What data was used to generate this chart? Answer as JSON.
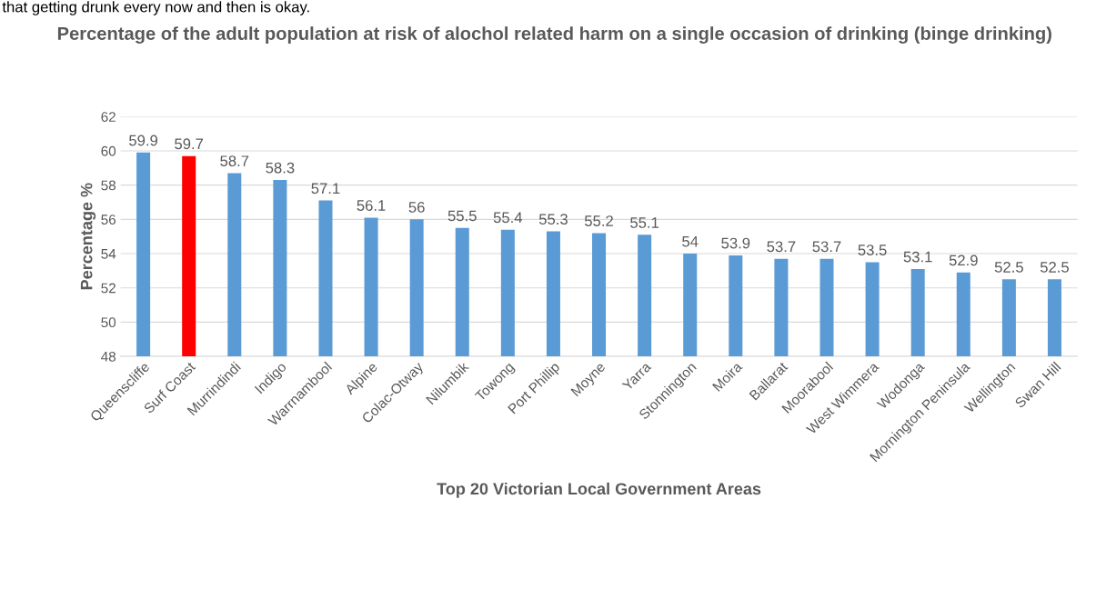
{
  "chart_data": {
    "type": "bar",
    "title": "Percentage of the adult population at risk of alochol related harm on a single occasion of drinking (binge drinking)",
    "xlabel": "Top 20 Victorian Local Government Areas",
    "ylabel": "Percentage %",
    "annotations": [
      "that getting drunk every now and then is okay."
    ],
    "categories": [
      "Queenscliffe",
      "Surf Coast",
      "Murrindindi",
      "Indigo",
      "Warrnambool",
      "Alpine",
      "Colac-Otway",
      "Nilumbik",
      "Towong",
      "Port Phillip",
      "Moyne",
      "Yarra",
      "Stonnington",
      "Moira",
      "Ballarat",
      "Moorabool",
      "West Wimmera",
      "Wodonga",
      "Mornington Peninsula",
      "Wellington",
      "Swan Hill"
    ],
    "values": [
      59.9,
      59.7,
      58.7,
      58.3,
      57.1,
      56.1,
      56,
      55.5,
      55.4,
      55.3,
      55.2,
      55.1,
      54,
      53.9,
      53.7,
      53.7,
      53.5,
      53.1,
      52.9,
      52.5,
      52.5
    ],
    "colors": [
      "#5b9bd5",
      "#ff0000",
      "#5b9bd5",
      "#5b9bd5",
      "#5b9bd5",
      "#5b9bd5",
      "#5b9bd5",
      "#5b9bd5",
      "#5b9bd5",
      "#5b9bd5",
      "#5b9bd5",
      "#5b9bd5",
      "#5b9bd5",
      "#5b9bd5",
      "#5b9bd5",
      "#5b9bd5",
      "#5b9bd5",
      "#5b9bd5",
      "#5b9bd5",
      "#5b9bd5",
      "#5b9bd5"
    ],
    "ylim": [
      48,
      62
    ],
    "yticks": [
      48,
      50,
      52,
      54,
      56,
      58,
      60,
      62
    ],
    "grid": "y",
    "data_labels": true
  }
}
